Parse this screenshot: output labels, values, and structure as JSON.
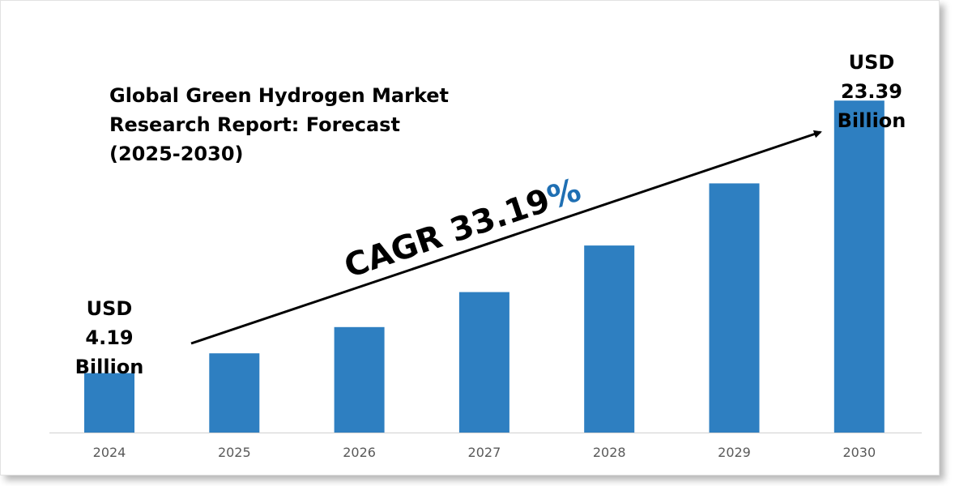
{
  "chart_data": {
    "type": "bar",
    "title_lines": [
      "Global Green Hydrogen Market",
      "Research Report: Forecast",
      "(2025-2030)"
    ],
    "categories": [
      "2024",
      "2025",
      "2026",
      "2027",
      "2028",
      "2029",
      "2030"
    ],
    "values": [
      4.19,
      5.58,
      7.43,
      9.9,
      13.18,
      17.56,
      23.39
    ],
    "start_label": [
      "USD",
      "4.19",
      "Billion"
    ],
    "end_label": [
      "USD",
      "23.39",
      "Billion"
    ],
    "cagr_text": "CAGR 33.19",
    "cagr_percent": "%",
    "xlabel": "",
    "ylabel": "",
    "ylim": [
      0,
      27
    ],
    "grid": false,
    "colors": {
      "bar": "#2e7fc1",
      "percent": "#1f6fb3",
      "arrow": "#000000",
      "axis": "#d0d0d0"
    }
  }
}
